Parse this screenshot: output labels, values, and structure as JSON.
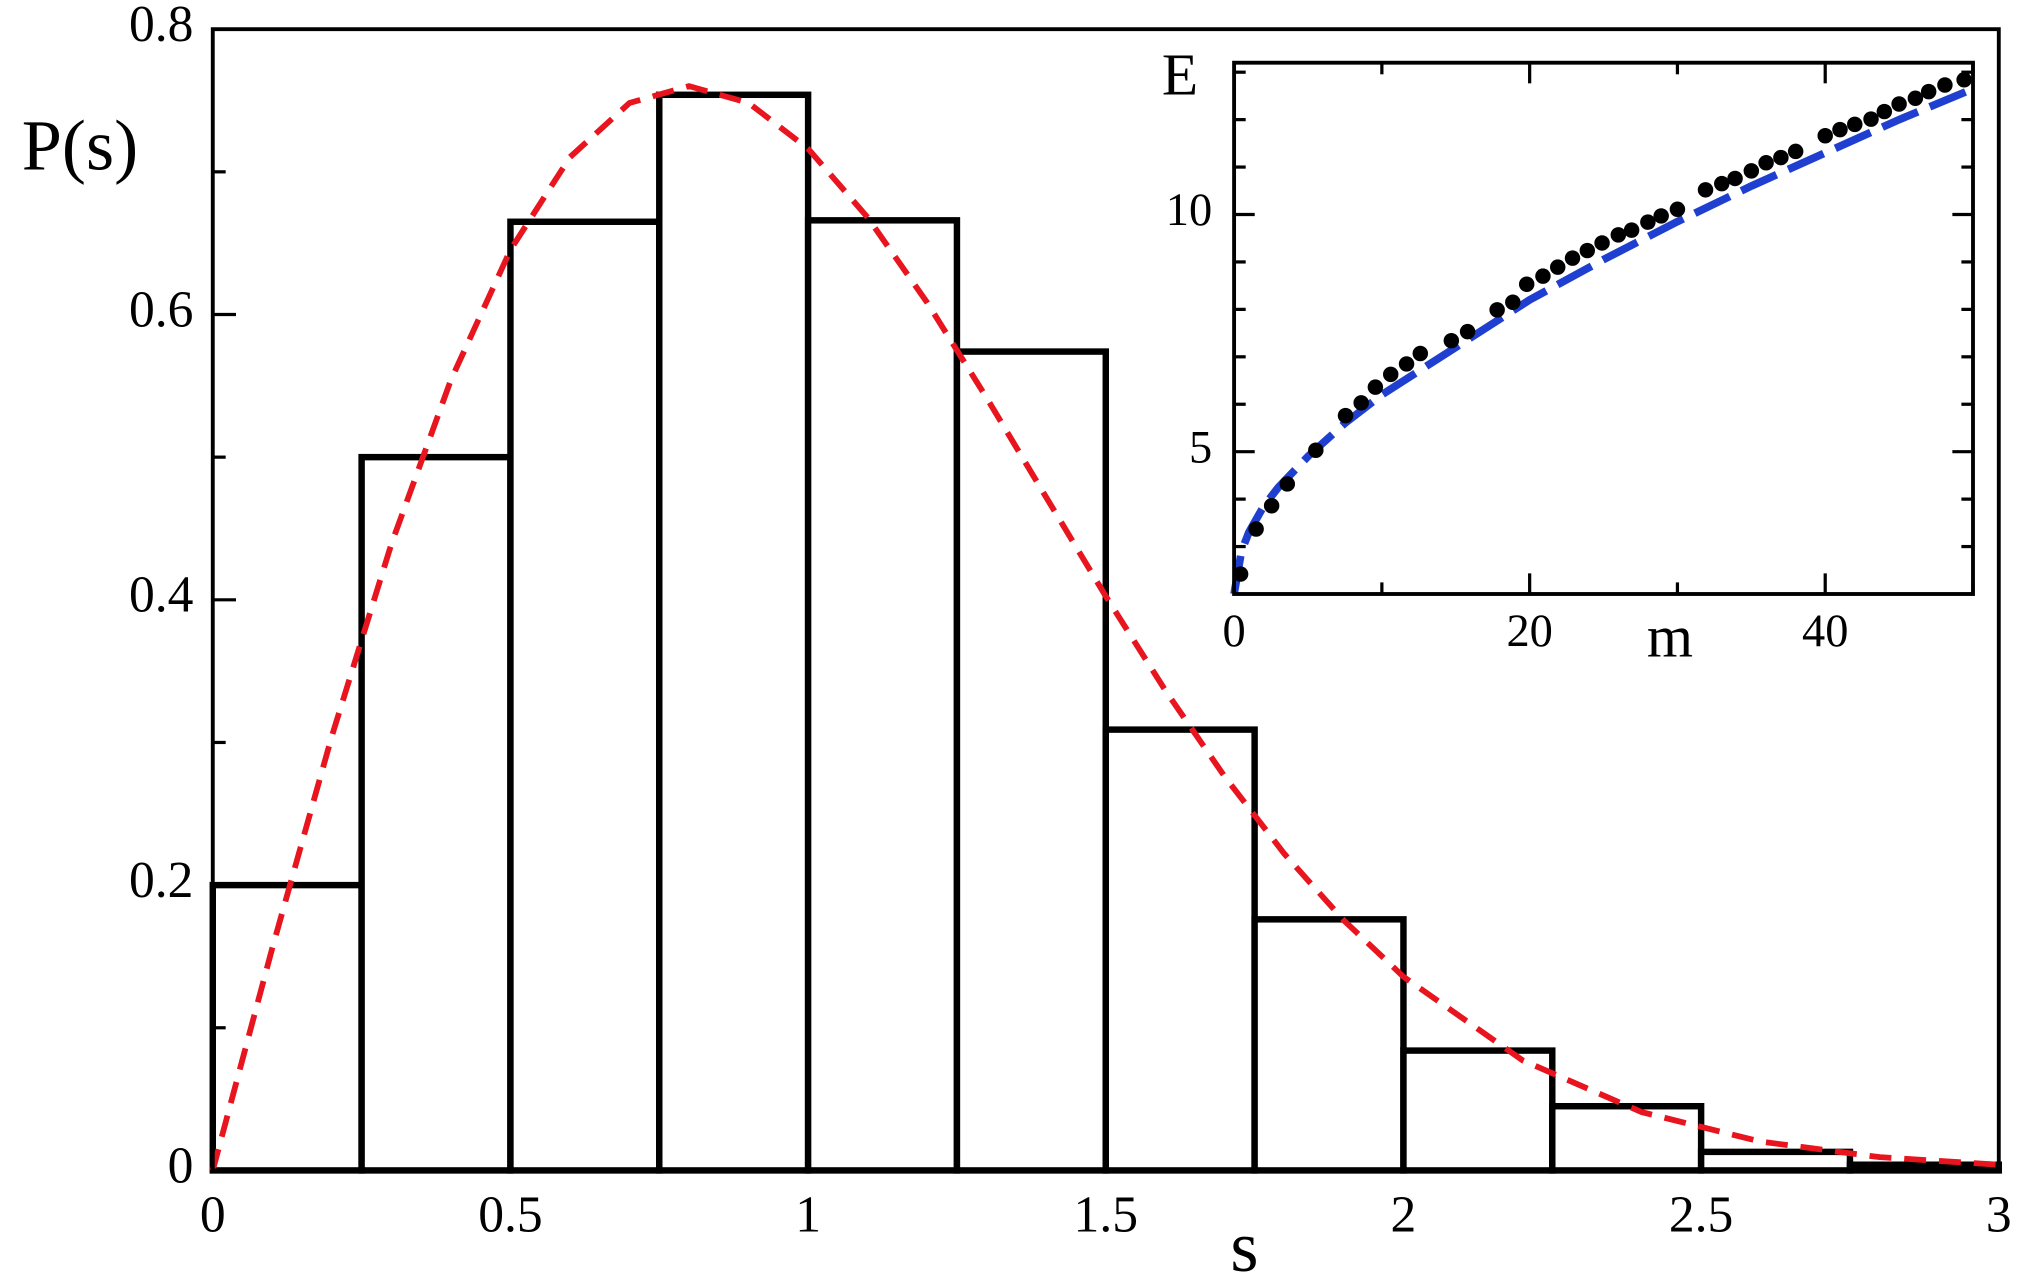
{
  "chart_data": [
    {
      "type": "histogram",
      "xlabel": "s",
      "ylabel": "P(s)",
      "bins": [
        0,
        0.25,
        0.5,
        0.75,
        1,
        1.25,
        1.5,
        1.75,
        2,
        2.25,
        2.5,
        2.75,
        3
      ],
      "values": [
        0.2,
        0.5,
        0.665,
        0.754,
        0.666,
        0.574,
        0.309,
        0.176,
        0.084,
        0.045,
        0.013,
        0.004
      ],
      "color": "#000000",
      "series": [
        {
          "color": "#e8141e",
          "x": [
            0,
            0.1,
            0.2,
            0.3,
            0.4,
            0.5,
            0.6,
            0.7,
            0.8,
            0.9,
            1.0,
            1.1,
            1.2,
            1.3,
            1.4,
            1.5,
            1.6,
            1.7,
            1.8,
            1.9,
            2.0,
            2.2,
            2.4,
            2.6,
            2.8,
            3.0
          ],
          "values": [
            0,
            0.1559,
            0.3044,
            0.4391,
            0.5541,
            0.6453,
            0.7103,
            0.7483,
            0.7601,
            0.7483,
            0.7162,
            0.668,
            0.6083,
            0.5415,
            0.4718,
            0.4025,
            0.3365,
            0.2759,
            0.2219,
            0.1752,
            0.1358,
            0.0772,
            0.0409,
            0.0202,
            0.0093,
            0.004
          ]
        }
      ],
      "xlim": [
        0,
        3
      ],
      "ylim": [
        0,
        0.8
      ],
      "xticks": [
        0,
        0.5,
        1,
        1.5,
        2,
        2.5,
        3
      ],
      "yticks": [
        0,
        0.2,
        0.4,
        0.6,
        0.8
      ],
      "xminor": [
        0.25,
        0.75,
        1.25,
        1.75,
        2.25,
        2.75
      ],
      "yminor": [
        0.1,
        0.3,
        0.5,
        0.7
      ]
    },
    {
      "type": "scatter",
      "xlabel": "m",
      "ylabel": "E",
      "x": [
        0.44,
        1.49,
        2.54,
        3.6,
        5.53,
        7.54,
        8.6,
        9.56,
        10.6,
        11.67,
        12.6,
        14.7,
        15.8,
        17.8,
        18.86,
        19.8,
        20.9,
        21.9,
        22.9,
        23.9,
        24.9,
        26.0,
        26.9,
        28.0,
        28.9,
        30.0,
        31.9,
        33.0,
        33.9,
        35.0,
        36.0,
        37.0,
        38.0,
        40.0,
        41.0,
        42.0,
        43.1,
        44.0,
        45.0,
        46.1,
        47.0,
        48.1,
        49.4
      ],
      "values": [
        2.42,
        3.37,
        3.86,
        4.32,
        5.03,
        5.76,
        6.03,
        6.36,
        6.63,
        6.85,
        7.07,
        7.34,
        7.53,
        7.99,
        8.15,
        8.53,
        8.7,
        8.89,
        9.08,
        9.24,
        9.4,
        9.57,
        9.67,
        9.84,
        9.97,
        10.11,
        10.52,
        10.65,
        10.76,
        10.92,
        11.09,
        11.2,
        11.33,
        11.66,
        11.79,
        11.9,
        12.01,
        12.17,
        12.33,
        12.45,
        12.59,
        12.73,
        12.84
      ],
      "color": "#000000",
      "series": [
        {
          "color": "#1f3fd0",
          "x": [
            0,
            0.5,
            1,
            2,
            3,
            5,
            7.5,
            10,
            15,
            20,
            25,
            30,
            35,
            40,
            45,
            50
          ],
          "values": [
            2.0,
            2.9,
            3.3,
            3.85,
            4.25,
            4.9,
            5.6,
            6.2,
            7.2,
            8.2,
            9.05,
            9.85,
            10.6,
            11.3,
            12.0,
            12.65
          ]
        }
      ],
      "xlim": [
        0,
        50
      ],
      "ylim": [
        2,
        13.2
      ],
      "xticks": [
        0,
        20,
        40
      ],
      "yticks": [
        5,
        10
      ],
      "xminor": [
        10,
        30,
        50
      ],
      "yminor": [
        3,
        4,
        6,
        7,
        8,
        9,
        11,
        12,
        13
      ]
    }
  ]
}
